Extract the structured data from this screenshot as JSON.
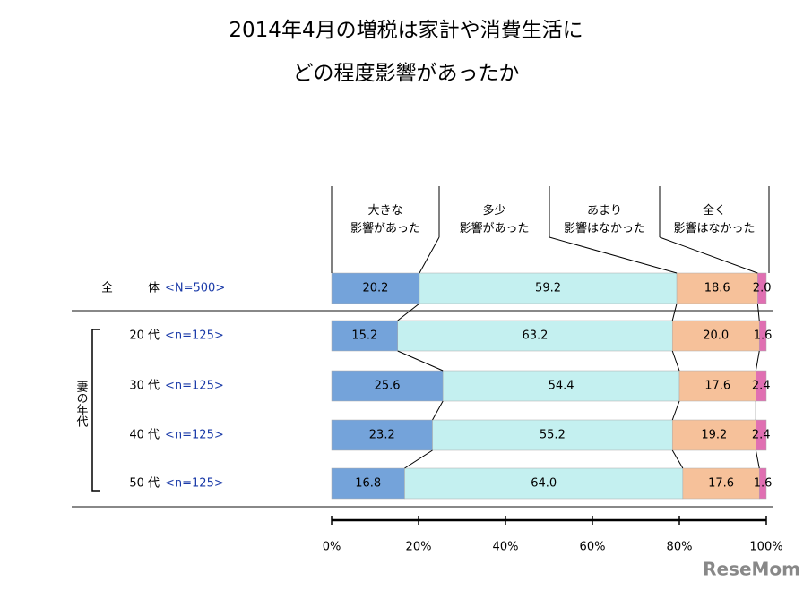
{
  "chart_data": {
    "type": "stacked-bar-horizontal",
    "title": [
      "2014年4月の増税は家計や消費生活に",
      "どの程度影響があったか"
    ],
    "categories": [
      "全　　　体",
      "20 代",
      "30 代",
      "40 代",
      "50 代"
    ],
    "sample_sizes": [
      "<N=500>",
      "<n=125>",
      "<n=125>",
      "<n=125>",
      "<n=125>"
    ],
    "group_label": "妻の年代",
    "series": [
      {
        "name": "大きな\n影響があった",
        "color": "#74a3da",
        "values": [
          20.2,
          15.2,
          25.6,
          23.2,
          16.8
        ],
        "value_labels": [
          "20.2",
          "15.2",
          "25.6",
          "23.2",
          "16.8"
        ]
      },
      {
        "name": "多少\n影響があった",
        "color": "#c4f0f0",
        "values": [
          59.2,
          63.2,
          54.4,
          55.2,
          64.0
        ],
        "value_labels": [
          "59.2",
          "63.2",
          "54.4",
          "55.2",
          "64.0"
        ]
      },
      {
        "name": "あまり\n影響はなかった",
        "color": "#f6c19a",
        "values": [
          18.6,
          20.0,
          17.6,
          19.2,
          17.6
        ],
        "value_labels": [
          "18.6",
          "20.0",
          "17.6",
          "19.2",
          "17.6"
        ]
      },
      {
        "name": "全く\n影響はなかった",
        "color": "#e06fb2",
        "values": [
          2.0,
          1.6,
          2.4,
          2.4,
          1.6
        ],
        "value_labels": [
          "2.0",
          "1.6",
          "2.4",
          "2.4",
          "1.6"
        ]
      }
    ],
    "xlim": [
      0,
      100
    ],
    "xticks": [
      {
        "value": 0,
        "label": "0%"
      },
      {
        "value": 20,
        "label": "20%"
      },
      {
        "value": 40,
        "label": "40%"
      },
      {
        "value": 60,
        "label": "60%"
      },
      {
        "value": 80,
        "label": "80%"
      },
      {
        "value": 100,
        "label": "100%"
      }
    ],
    "watermark": "ReseMom"
  }
}
